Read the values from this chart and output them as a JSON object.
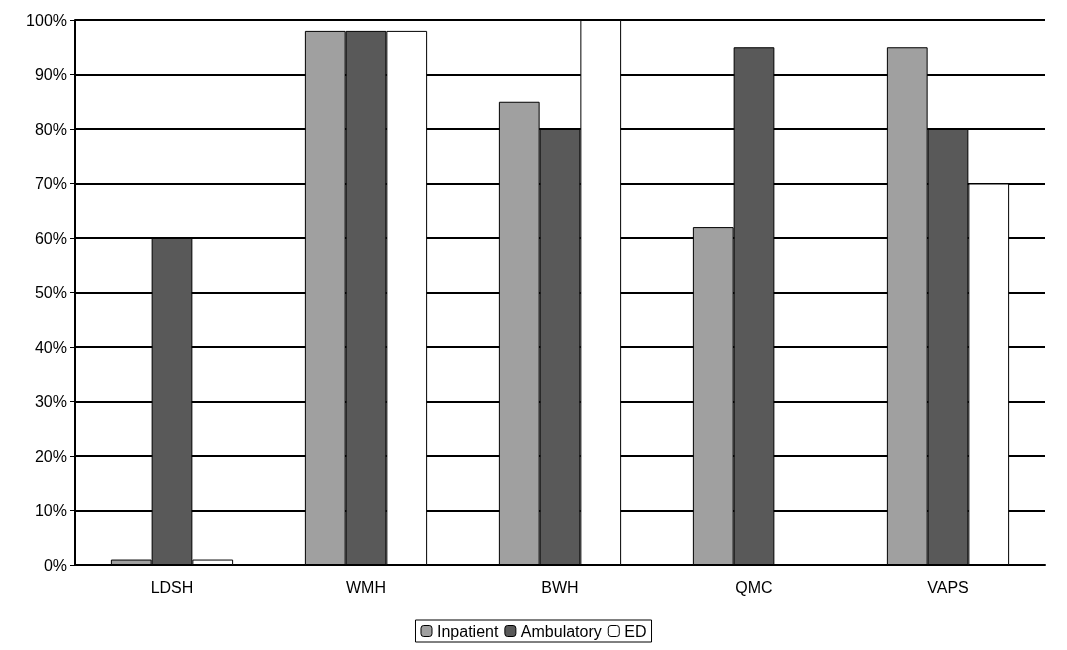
{
  "chart_data": {
    "type": "bar",
    "categories": [
      "LDSH",
      "WMH",
      "BWH",
      "QMC",
      "VAPS"
    ],
    "series": [
      {
        "name": "Inpatient",
        "color": "#a0a0a0",
        "values": [
          1,
          98,
          85,
          62,
          95
        ]
      },
      {
        "name": "Ambulatory",
        "color": "#595959",
        "values": [
          60,
          98,
          80,
          95,
          80
        ]
      },
      {
        "name": "ED",
        "color": "#ffffff",
        "values": [
          1,
          98,
          100,
          null,
          70
        ]
      }
    ],
    "ylim": [
      0,
      100
    ],
    "yticks": [
      {
        "value": 0,
        "label": "0%"
      },
      {
        "value": 10,
        "label": "10%"
      },
      {
        "value": 20,
        "label": "20%"
      },
      {
        "value": 30,
        "label": "30%"
      },
      {
        "value": 40,
        "label": "40%"
      },
      {
        "value": 50,
        "label": "50%"
      },
      {
        "value": 60,
        "label": "60%"
      },
      {
        "value": 70,
        "label": "70%"
      },
      {
        "value": 80,
        "label": "80%"
      },
      {
        "value": 90,
        "label": "90%"
      },
      {
        "value": 100,
        "label": "100%"
      }
    ],
    "grid": "y",
    "legend": "bottom"
  }
}
